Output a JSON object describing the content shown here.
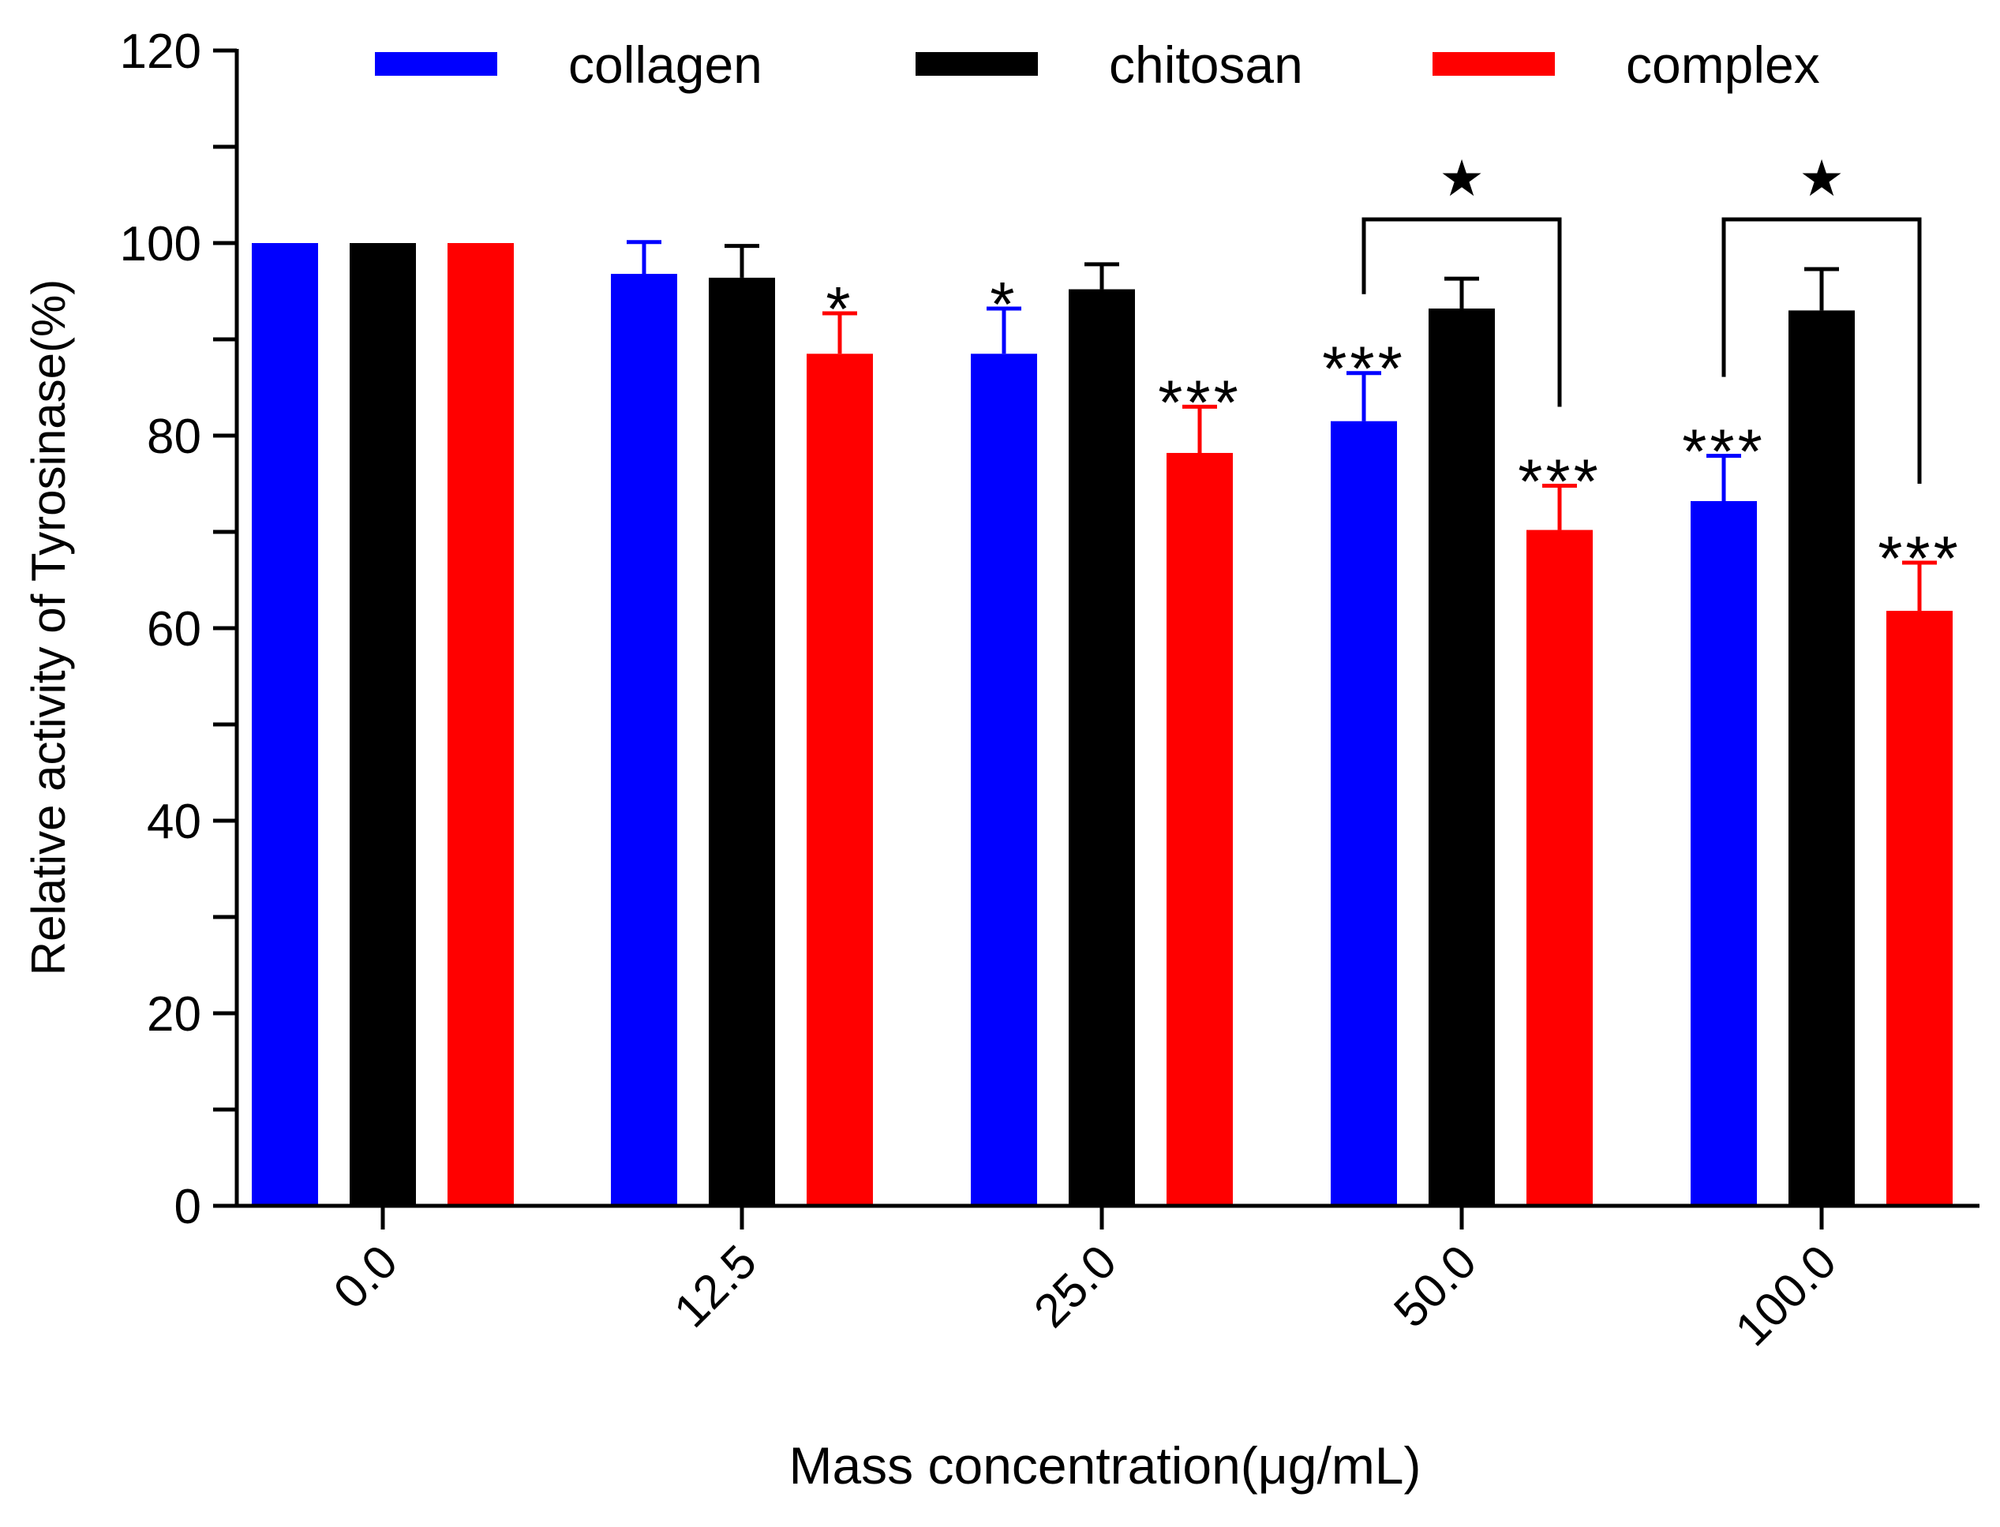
{
  "chart_data": {
    "type": "bar",
    "xlabel": "Mass concentration(μg/mL)",
    "ylabel": "Relative activity of Tyrosinase(%)",
    "ylim": [
      0,
      120
    ],
    "yticks": [
      "0",
      "20",
      "40",
      "60",
      "80",
      "100",
      "120"
    ],
    "categories": [
      "0.0",
      "12.5",
      "25.0",
      "50.0",
      "100.0"
    ],
    "legend_position": "top",
    "series": [
      {
        "name": "collagen",
        "color": "#0000ff",
        "values": [
          100,
          96.8,
          88.5,
          81.5,
          73.2
        ],
        "errors": [
          0,
          3.3,
          4.7,
          5.0,
          4.7
        ]
      },
      {
        "name": "chitosan",
        "color": "#000000",
        "values": [
          100,
          96.4,
          95.2,
          93.2,
          93.0
        ],
        "errors": [
          0,
          3.3,
          2.6,
          3.1,
          4.3
        ]
      },
      {
        "name": "complex",
        "color": "#ff0000",
        "values": [
          100,
          88.5,
          78.2,
          70.2,
          61.8
        ],
        "errors": [
          0,
          4.2,
          4.8,
          4.6,
          5.0
        ]
      }
    ],
    "significance_marks": [
      {
        "category": "12.5",
        "series": "complex",
        "label": "*"
      },
      {
        "category": "25.0",
        "series": "collagen",
        "label": "*"
      },
      {
        "category": "25.0",
        "series": "complex",
        "label": "***"
      },
      {
        "category": "50.0",
        "series": "collagen",
        "label": "***"
      },
      {
        "category": "50.0",
        "series": "complex",
        "label": "***"
      },
      {
        "category": "100.0",
        "series": "collagen",
        "label": "***"
      },
      {
        "category": "100.0",
        "series": "complex",
        "label": "***"
      }
    ],
    "comparison_brackets": [
      {
        "category": "50.0",
        "from": "collagen",
        "to": "complex",
        "label": "★"
      },
      {
        "category": "100.0",
        "from": "collagen",
        "to": "complex",
        "label": "★"
      }
    ]
  }
}
